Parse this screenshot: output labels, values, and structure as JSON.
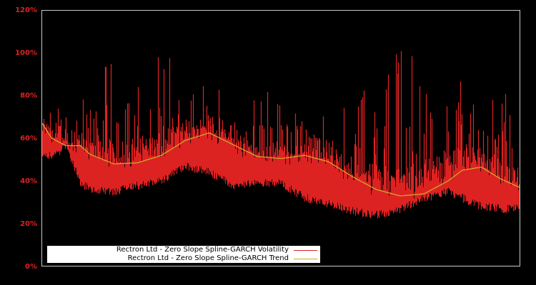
{
  "chart_data": {
    "type": "line",
    "title": "",
    "xlabel": "",
    "ylabel": "",
    "ylim": [
      0,
      120
    ],
    "y_ticks": [
      "0%",
      "20%",
      "40%",
      "60%",
      "80%",
      "100%",
      "120%"
    ],
    "y_tick_values": [
      0,
      20,
      40,
      60,
      80,
      100,
      120
    ],
    "grid": false,
    "legend_position": "lower left",
    "background": "#000000",
    "frame_color": "#c8c8c8",
    "tick_label_color": "#dd2222",
    "x_positions_normalized": [
      0.0,
      0.02,
      0.05,
      0.08,
      0.1,
      0.15,
      0.2,
      0.25,
      0.3,
      0.35,
      0.4,
      0.45,
      0.5,
      0.55,
      0.6,
      0.65,
      0.7,
      0.75,
      0.8,
      0.85,
      0.88,
      0.92,
      0.96,
      1.0
    ],
    "series": [
      {
        "name": "Rectron Ltd - Zero Slope Spline-GARCH Volatility",
        "color": "#dd2222",
        "style": "dense spiky bars",
        "upper_envelope": [
          70,
          88,
          72,
          74,
          92,
          100,
          102,
          98,
          110,
          85,
          80,
          78,
          88,
          75,
          72,
          78,
          90,
          103,
          108,
          95,
          108,
          82,
          84,
          72
        ],
        "lower_envelope": [
          49,
          50,
          54,
          37,
          34,
          33,
          36,
          38,
          45,
          42,
          36,
          37,
          37,
          30,
          27,
          24,
          22,
          25,
          30,
          33,
          30,
          26,
          25,
          25
        ]
      },
      {
        "name": "Rectron Ltd - Zero Slope Spline-GARCH Trend",
        "color": "#d4a52a",
        "values": [
          67,
          60,
          56.5,
          56.5,
          52.5,
          48,
          48.5,
          52,
          59,
          62.5,
          57,
          51.5,
          50.5,
          52,
          49,
          42,
          36,
          33,
          34,
          40,
          45,
          46.5,
          41,
          37
        ]
      }
    ]
  },
  "legend": {
    "items": [
      {
        "label": "Rectron Ltd - Zero Slope Spline-GARCH Volatility",
        "color": "#dd2222"
      },
      {
        "label": "Rectron Ltd - Zero Slope Spline-GARCH Trend",
        "color": "#d4a52a"
      }
    ]
  }
}
